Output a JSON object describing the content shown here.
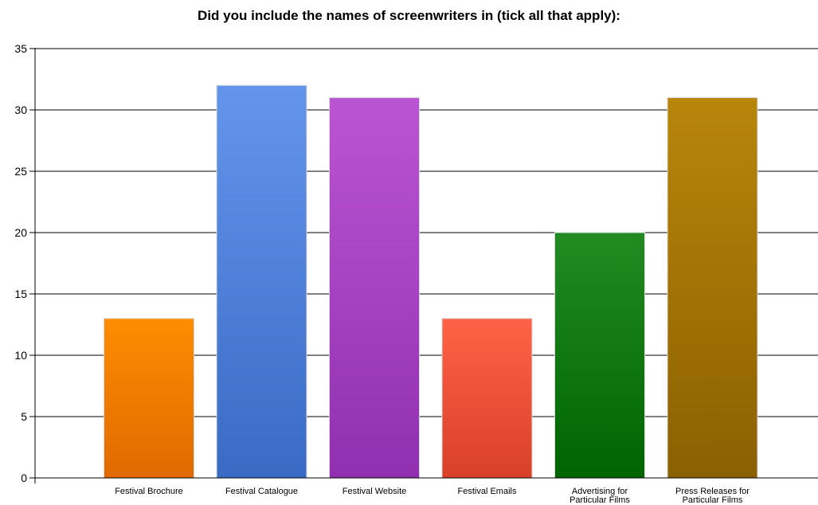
{
  "chart_data": {
    "type": "bar",
    "title": "Did you include the names of screenwriters in (tick all that apply):",
    "xlabel": "",
    "ylabel": "",
    "ylim": [
      0,
      35
    ],
    "yticks": [
      0,
      5,
      10,
      15,
      20,
      25,
      30,
      35
    ],
    "grid": true,
    "legend": "none",
    "categories": [
      [
        "Festival Brochure"
      ],
      [
        "Festival Catalogue"
      ],
      [
        "Festival Website"
      ],
      [
        "Festival Emails"
      ],
      [
        "Advertising for",
        "Particular Films"
      ],
      [
        "Press Releases for",
        "Particular Films"
      ]
    ],
    "values": [
      13,
      32,
      31,
      13,
      20,
      31
    ],
    "colors": [
      [
        "#ff8c00",
        "#e06a00"
      ],
      [
        "#6495ed",
        "#3a6bc4"
      ],
      [
        "#ba55d3",
        "#9030b0"
      ],
      [
        "#ff6347",
        "#d84028"
      ],
      [
        "#228b22",
        "#006400"
      ],
      [
        "#b8860b",
        "#8b6000"
      ]
    ]
  }
}
